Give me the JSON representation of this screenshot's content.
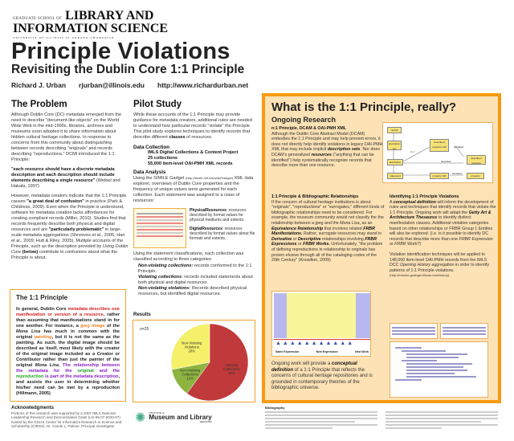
{
  "header": {
    "logo_small": "GRADUATE SCHOOL OF",
    "logo_big1": "LIBRARY AND",
    "logo_big2": "INFORMATION SCIENCE",
    "logo_univ": "UNIVERSITY OF ILLINOIS AT URBANA-CHAMPAIGN",
    "title": "Principle Violations",
    "subtitle": "Revisiting the Dublin Core 1:1 Principle",
    "author": "Richard J. Urban",
    "email": "rjurban@illinois.edu",
    "url": "http://www.richardurban.net"
  },
  "problem": {
    "heading": "The Problem",
    "p1": "Although Dublin Core (DC) metadata emerged from the need to describe \"document-like objects\" on the World Wide Web in the mid-1990s, libraries, archives and museums soon adopted it to share information about hidden cultural heritage collections.  In response to concerns from this community about distinguishing between records describing \"originals\" and records describing \"reproductions,\" DCMI introduced the 1:1 Principle:",
    "quote": "\"each resource should have a discrete metadata description and each description should include elements describing a single resource\"",
    "quote_cite": " (Weibel and Hakala, 1997)",
    "p3a": "However, metadata creators indicate that the 1:1 Principle causes ",
    "p3b": "\"a great deal of confusion\"",
    "p3c": " in practice (Park & Childress, 2009). Even when the Principle is understood, software for metadata creation lacks affordances for creating compliant records (Miller, 2010).  Studies find that records frequently describe both physical and digital resources and are ",
    "p3d": "\"particularly problematic\"",
    "p3e": " in large-scale metadata aggregations (Shreeves et al., 2005; Han et al., 2009; Hutt & Riley, 2005). Multiple accounts of the Principle, such as the description provided by ",
    "p3f": "Using Dublin Core",
    "p3g": " (below)",
    "p3h": " contribute to confusions about what the Principle is about."
  },
  "principle_box": {
    "heading": "The 1:1 Principle",
    "t1": "In general, Dublin Core ",
    "t2": "metadata describes one manifestation or version of a resource",
    "t3": ", rather than assuming that manifestations stand in for one another.  For instance, a ",
    "t4": "jpeg image",
    "t5": " of the ",
    "t6": "Mona Lisa",
    "t7": " has much in common with the original ",
    "t8": "painting",
    "t9": ", but it is not the same as the painting.  As such, the digital image should be described as itself, most likely with the creator of the original image included as a Creator or Contributor rather than just the painter of the original ",
    "t10": "Mona Lisa",
    "t11": ".  ",
    "t12": "The relationship between the metadata for the ",
    "t13": "original",
    "t14": " and the ",
    "t15": "reproduction",
    "t16": " is part of the metadata description",
    "t17": ", and assists the user in determining whether his/her need can be met by a reproduction (Hillmann, 2005)"
  },
  "acknowledgments": {
    "heading": "Acknowledgments",
    "text": "Portions of this research was supported by a 2007 IMLS National Leadership Research and Demonstration Grant (LG-06-07-0020-07) hosted by the GSLIS Center for Informatics Research in Science and Scholarship (CIRSS). Dr. Carole L. Palmer, Principal Investigator"
  },
  "pilot": {
    "heading": "Pilot Study",
    "p1a": "While these accounts of the 1:1 Principle may provide guidance for  metadata creators, additional rules are needed to understand how particular records \"violate\" the Principle.  This pilot study explores techniques to identify records that describe different ",
    "p1b": "classes",
    "p1c": " of resources.",
    "dc_heading": "Data Collection",
    "dc1": "IMLS Digital Collections & Content Project",
    "dc2": "25 collections",
    "dc3": "55,000 item-level OAI-PMH XML records",
    "da_heading": "Data Analysis",
    "da1": "Using the SIMILE Gadget ",
    "da_url": "(http://simile.mit.edu/wiki/Gadget)",
    "da2": " XML data explorer, overviews of Dublin Core properties and the frequency of unique values were generated for each collection. Each statement was assigned to a class of resources:",
    "phys_label": "PhysicalResources",
    "phys_text": ": resources described by format values for physical mediums and extents.",
    "dig_label": "DigitalResources",
    "dig_text": ": resources described by format values about file formats and extents.",
    "p3": "Using the statement classifications, each collection was classified according to three categories:",
    "c1_label": "Non-violating collections:",
    "c1_text": "  records conformed to the 1:1 Principle.",
    "c2_label": "Violating collections",
    "c2_text": ": records included statements about both physical and digital resources",
    "c3_label": "Non-violating violations:",
    "c3_text": "  Records described physical resources, but identified digital resources.",
    "results_heading": "Results"
  },
  "chart_data": {
    "type": "pie",
    "annotation": "n=25",
    "slices": [
      {
        "label": "Violating Collections",
        "value": 60,
        "pct": "60%",
        "color": "#c0393b"
      },
      {
        "label": "Non-Violating Collections",
        "value": 12,
        "pct": "12%",
        "color": "#8db43e"
      },
      {
        "label": "Non-Violating Violations",
        "value": 28,
        "pct": "28%",
        "color": "#f5f06a"
      }
    ]
  },
  "imls_logo": {
    "small": "INSTITUTE of",
    "big": "Museum and Library",
    "sub": "SERVICES"
  },
  "research": {
    "heading": "What is the 1:1 Principle, really?",
    "subheading": "Ongoing Research",
    "s1_heading": "n:1 Principle, DCAM & OAI-PMH XML",
    "s1a": "Although the Dublin Core Abstract Model (DCAM) embodies the 1:1 Principle and may help prevent errors, it does not directly help identify violations in legacy OAI-PMH XML that may include implicit ",
    "s1b": "description sets",
    "s1c": ". Nor does DCAM's generalized ",
    "s1d": "resources",
    "s1e": " (\"anything that can be identified\") help systematically recognize records that describe more than one resource.",
    "diagram_nodes": [
      "record",
      "description set",
      "described resource URI",
      "description",
      "described resource",
      "statement",
      "property URI",
      "property"
    ],
    "diagram_edges": [
      "0..1",
      "identified",
      "describes",
      "identified"
    ],
    "s2_heading": "1:1 Principle & Bibliographic Relationships",
    "s2a": "If the concern of cultural heritage institutions is about \"originals\", \"reproductions\" or \"surrogates,\" different kinds of bibliographic relationships need to be considered. For example, the museum community would not classify the the relationship between a jpeg and the ",
    "s2b": "Mona Lisa",
    "s2c": ", as an ",
    "s2d": "Equivalence Relationship",
    "s2e": " that involves related ",
    "s2f": "FRBR Manifestations.",
    "s2g": "  Rather, surrogate resources may stand in ",
    "s2h": "Derivative",
    "s2i": " or ",
    "s2j": "Descriptive",
    "s2k": " relationships involving ",
    "s2l": "FRBR Expressions",
    "s2m": " or ",
    "s2n": "FRBR Works.",
    "s2o": "  Unfortunately, \"the problem of defining reproductions in relationship to originals has proven elusive through all of the cataloging codes of the 20th Century\" (Knowlton, 2009)",
    "frbr_labels": [
      "Same Expression",
      "New Expression",
      "New Work"
    ],
    "s3a": "Ongoing work will provide a ",
    "s3b": "conceptual definition",
    "s3c": " of a 1:1 Principle that reflects the concerns of cultural heritage repositories and is grounded in contemporary theories of the bibliographic universe.",
    "s4_heading": "Identifying 1:1 Principle Violations",
    "s4a": "A ",
    "s4b": "conceptual definition",
    "s4c": " will inform the development of rules and techniques that identify records that violate the 1:1 Principle. Ongoing work will adapt the ",
    "s4d": "Getty Art & Architecture Thesaurus",
    "s4e": " to identify distinct manifestation classes.  Additional violation categories based on other relationships or FRBR Group 1 Entities will also be explored. (i.e. is it possible to identify DC records that describe more than one ",
    "s4f": "FRBR Expression or FRBR Work?",
    "s4g": ")",
    "s5a": "Violation identification techniques will be applied to 148,000 item-level OAI-PMH records from the IMLS DCC ",
    "s5b": "Opening History",
    "s5c": " aggregation in order to identify patterns of 1:1 Principle violations. ",
    "s5d": "(http://imlsdcc.grainger.illinois.edu/history)."
  },
  "bibliography": {
    "heading": "Bibliography"
  },
  "colors": {
    "accent_orange": "#f89a10",
    "box_fill": "#fde2b6",
    "red_text": "#d02020",
    "purple_text": "#8a20c0",
    "green_text": "#20a020"
  }
}
